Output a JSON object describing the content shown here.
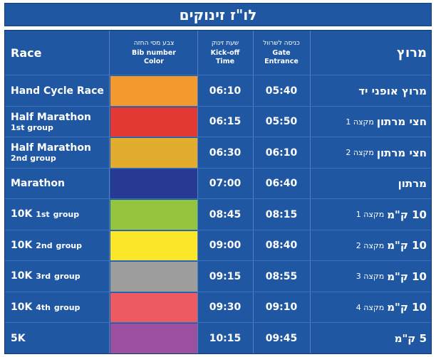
{
  "title": "לו\"ז זינוקים",
  "header": {
    "race": "Race",
    "color_he": "צבע מסי החזה",
    "color_en1": "Bib number",
    "color_en2": "Color",
    "kick_he": "שעת זינוק",
    "kick_en1": "Kick-off",
    "kick_en2": "Time",
    "gate_he": "כניסה לשרוול",
    "gate_en1": "Gate",
    "gate_en2": "Entrance",
    "race_he": "מרוץ"
  },
  "rows": [
    {
      "race": "Hand Cycle Race",
      "race_sup": "",
      "race_tail": "",
      "race_line2": "",
      "color": "#f39a2e",
      "kickoff": "06:10",
      "gate": "05:40",
      "he_main": "מרוץ אופני יד",
      "he_sub": ""
    },
    {
      "race": "Half Marathon",
      "race_sup": "",
      "race_tail": "",
      "race_line2": "1st group",
      "color": "#e53935",
      "kickoff": "06:15",
      "gate": "05:50",
      "he_main": "חצי מרתון",
      "he_sub": "מקצה 1"
    },
    {
      "race": "Half Marathon",
      "race_sup": "",
      "race_tail": "",
      "race_line2": "2nd group",
      "color": "#e2ad2e",
      "kickoff": "06:30",
      "gate": "06:10",
      "he_main": "חצי מרתון",
      "he_sub": "מקצה 2"
    },
    {
      "race": "Marathon",
      "race_sup": "",
      "race_tail": "",
      "race_line2": "",
      "color": "#263a93",
      "kickoff": "07:00",
      "gate": "06:40",
      "he_main": "מרתון",
      "he_sub": ""
    },
    {
      "race": "10K",
      "race_sup": "1st",
      "race_tail": "group",
      "race_line2": "",
      "color": "#95c43f",
      "kickoff": "08:45",
      "gate": "08:15",
      "he_main": "10 ק\"מ",
      "he_sub": "מקצה 1"
    },
    {
      "race": "10K",
      "race_sup": "2nd",
      "race_tail": "group",
      "race_line2": "",
      "color": "#fbe62a",
      "kickoff": "09:00",
      "gate": "08:40",
      "he_main": "10 ק\"מ",
      "he_sub": "מקצה 2"
    },
    {
      "race": "10K",
      "race_sup": "3rd",
      "race_tail": "group",
      "race_line2": "",
      "color": "#9d9d9d",
      "kickoff": "09:15",
      "gate": "08:55",
      "he_main": "10 ק\"מ",
      "he_sub": "מקצה 3"
    },
    {
      "race": "10K",
      "race_sup": "4th",
      "race_tail": "group",
      "race_line2": "",
      "color": "#ee5a61",
      "kickoff": "09:30",
      "gate": "09:10",
      "he_main": "10 ק\"מ",
      "he_sub": "מקצה 4"
    },
    {
      "race": "5K",
      "race_sup": "",
      "race_tail": "",
      "race_line2": "",
      "color": "#9b4f9f",
      "kickoff": "10:15",
      "gate": "09:45",
      "he_main": "5 ק\"מ",
      "he_sub": ""
    }
  ]
}
